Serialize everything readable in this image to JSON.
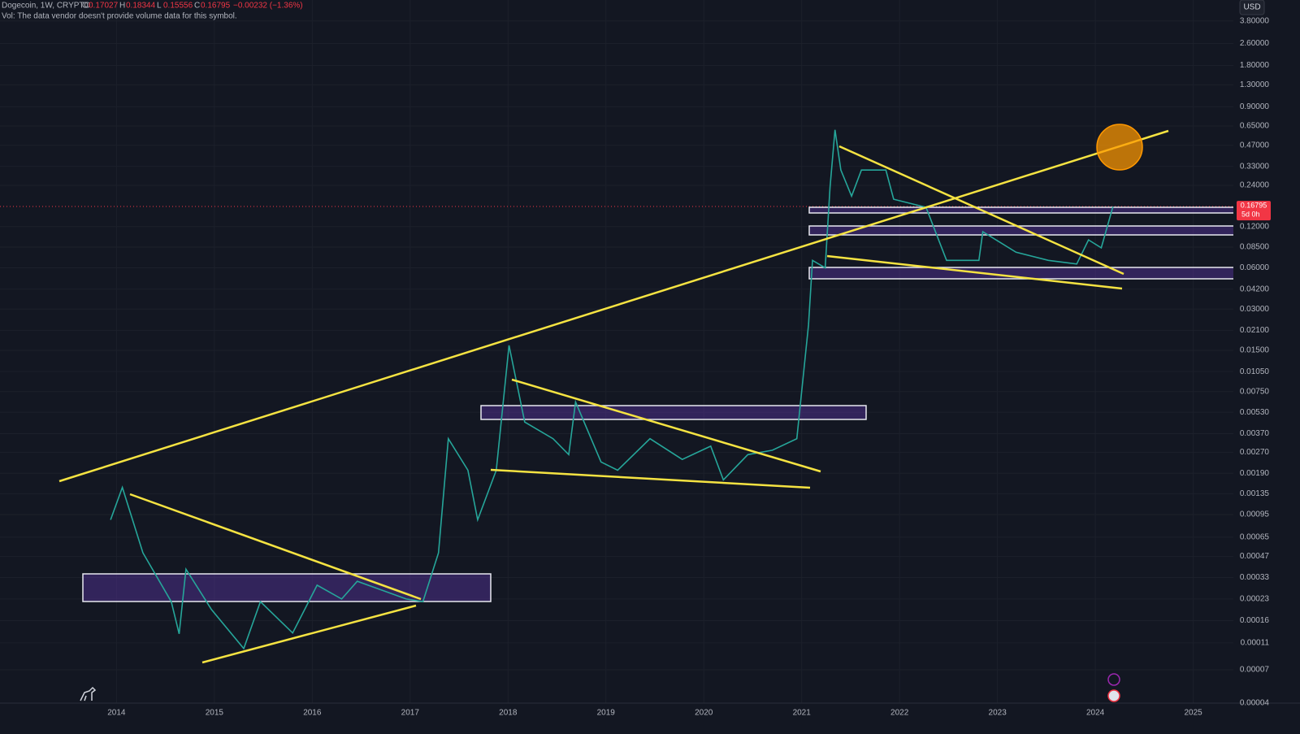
{
  "header": {
    "symbol": "Dogecoin, 1W, CRYPTO",
    "ohlc": [
      {
        "key": "O",
        "value": "0.17027"
      },
      {
        "key": "H",
        "value": "0.18344"
      },
      {
        "key": "L",
        "value": "0.15556"
      },
      {
        "key": "C",
        "value": "0.16795"
      }
    ],
    "change": "−0.00232 (−1.36%)",
    "volume_note": "Vol: The data vendor doesn't provide volume data for this symbol."
  },
  "currency_button": "USD",
  "price_tag": {
    "price": "0.16795",
    "countdown": "5d 0h"
  },
  "chart_data": {
    "type": "line",
    "color": "#26a69a",
    "log_scale": true,
    "grid": true,
    "x": [
      2013.94,
      2014.06,
      2014.27,
      2014.56,
      2014.64,
      2014.71,
      2014.97,
      2015.3,
      2015.47,
      2015.8,
      2016.05,
      2016.3,
      2016.46,
      2016.96,
      2017.13,
      2017.29,
      2017.39,
      2017.59,
      2017.69,
      2017.88,
      2018.01,
      2018.17,
      2018.46,
      2018.62,
      2018.69,
      2018.95,
      2019.12,
      2019.45,
      2019.78,
      2020.07,
      2020.2,
      2020.45,
      2020.7,
      2020.95,
      2021.07,
      2021.11,
      2021.24,
      2021.29,
      2021.34,
      2021.4,
      2021.51,
      2021.61,
      2021.86,
      2021.94,
      2022.27,
      2022.48,
      2022.81,
      2022.85,
      2023.19,
      2023.52,
      2023.81,
      2023.93,
      2024.06,
      2024.18
    ],
    "values": [
      0.00087,
      0.0015,
      0.0005,
      0.00022,
      0.000128,
      0.00038,
      0.000193,
      0.0001,
      0.00022,
      0.00013,
      0.00029,
      0.00023,
      0.00031,
      0.00023,
      0.00022,
      0.0005,
      0.0034,
      0.002,
      0.00087,
      0.002,
      0.0163,
      0.0045,
      0.0034,
      0.0026,
      0.0063,
      0.0023,
      0.002,
      0.0034,
      0.0024,
      0.003,
      0.0017,
      0.0026,
      0.0028,
      0.0034,
      0.023,
      0.068,
      0.06,
      0.233,
      0.61,
      0.31,
      0.2,
      0.31,
      0.31,
      0.19,
      0.166,
      0.068,
      0.068,
      0.11,
      0.078,
      0.068,
      0.064,
      0.096,
      0.084,
      0.16795
    ],
    "xlim": [
      2012.81,
      2025.41
    ],
    "xticks": [
      2014,
      2015,
      2016,
      2017,
      2018,
      2019,
      2020,
      2021,
      2022,
      2023,
      2024,
      2025
    ],
    "ylim": [
      4e-05,
      5.4
    ],
    "yticks": [
      {
        "value": 3.8,
        "label": "3.80000"
      },
      {
        "value": 2.6,
        "label": "2.60000"
      },
      {
        "value": 1.8,
        "label": "1.80000"
      },
      {
        "value": 1.3,
        "label": "1.30000"
      },
      {
        "value": 0.9,
        "label": "0.90000"
      },
      {
        "value": 0.65,
        "label": "0.65000"
      },
      {
        "value": 0.47,
        "label": "0.47000"
      },
      {
        "value": 0.33,
        "label": "0.33000"
      },
      {
        "value": 0.24,
        "label": "0.24000"
      },
      {
        "value": 0.12,
        "label": "0.12000"
      },
      {
        "value": 0.085,
        "label": "0.08500"
      },
      {
        "value": 0.06,
        "label": "0.06000"
      },
      {
        "value": 0.042,
        "label": "0.04200"
      },
      {
        "value": 0.03,
        "label": "0.03000"
      },
      {
        "value": 0.021,
        "label": "0.02100"
      },
      {
        "value": 0.015,
        "label": "0.01500"
      },
      {
        "value": 0.0105,
        "label": "0.01050"
      },
      {
        "value": 0.0075,
        "label": "0.00750"
      },
      {
        "value": 0.0053,
        "label": "0.00530"
      },
      {
        "value": 0.0037,
        "label": "0.00370"
      },
      {
        "value": 0.0027,
        "label": "0.00270"
      },
      {
        "value": 0.0019,
        "label": "0.00190"
      },
      {
        "value": 0.00135,
        "label": "0.00135"
      },
      {
        "value": 0.00095,
        "label": "0.00095"
      },
      {
        "value": 0.00065,
        "label": "0.00065"
      },
      {
        "value": 0.00047,
        "label": "0.00047"
      },
      {
        "value": 0.00033,
        "label": "0.00033"
      },
      {
        "value": 0.00023,
        "label": "0.00023"
      },
      {
        "value": 0.00016,
        "label": "0.00016"
      },
      {
        "value": 0.00011,
        "label": "0.00011"
      },
      {
        "value": 7e-05,
        "label": "0.00007"
      },
      {
        "value": 4e-05,
        "label": "0.00004"
      }
    ]
  }
}
